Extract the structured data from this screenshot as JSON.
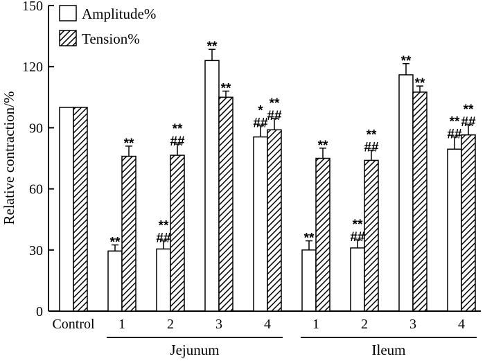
{
  "chart_data": {
    "type": "bar",
    "title": "",
    "xlabel": "",
    "ylabel": "Relative contraction/%",
    "ylim": [
      0,
      150
    ],
    "yticks": [
      0,
      30,
      60,
      90,
      120,
      150
    ],
    "categories": [
      "Control",
      "1",
      "2",
      "3",
      "4",
      "1",
      "2",
      "3",
      "4"
    ],
    "groups": [
      {
        "label": "Jejunum",
        "start": 1,
        "end": 4
      },
      {
        "label": "Ileum",
        "start": 5,
        "end": 8
      }
    ],
    "series": [
      {
        "name": "Amplitude%",
        "pattern": "white",
        "values": [
          100,
          29.5,
          30.5,
          123,
          85.5,
          30,
          31,
          116,
          79.5
        ],
        "errors": [
          0,
          3,
          4,
          5.5,
          5.5,
          4.5,
          4,
          5.5,
          6
        ],
        "annotations": [
          [],
          [
            "**"
          ],
          [
            "##",
            "**"
          ],
          [
            "**"
          ],
          [
            "##",
            "*"
          ],
          [
            "**"
          ],
          [
            "##",
            "**"
          ],
          [
            "**"
          ],
          [
            "##",
            "**"
          ]
        ]
      },
      {
        "name": "Tension%",
        "pattern": "hatched",
        "values": [
          100,
          76,
          76.5,
          105,
          89,
          75,
          74,
          107.5,
          86.5
        ],
        "errors": [
          0,
          5,
          5.5,
          3,
          5.5,
          5,
          5,
          3,
          5
        ],
        "annotations": [
          [],
          [
            "**"
          ],
          [
            "##",
            "**"
          ],
          [
            "**"
          ],
          [
            "##",
            "**"
          ],
          [
            "**"
          ],
          [
            "##",
            "**"
          ],
          [
            "**"
          ],
          [
            "##",
            "**"
          ]
        ]
      }
    ],
    "legend": "top-left"
  }
}
